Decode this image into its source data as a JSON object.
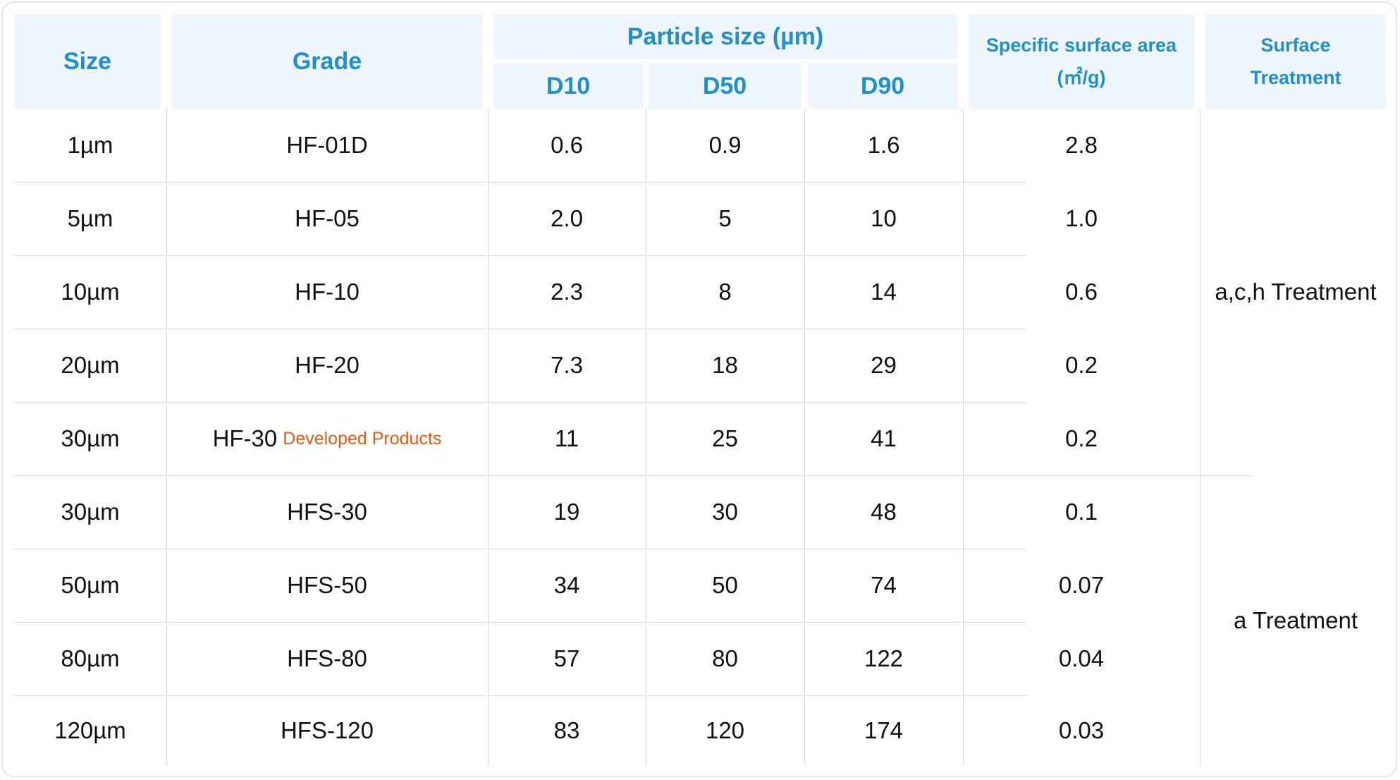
{
  "headers": {
    "size": "Size",
    "grade": "Grade",
    "particle_size": "Particle size (µm)",
    "d10": "D10",
    "d50": "D50",
    "d90": "D90",
    "ssa_line1": "Specific surface area",
    "ssa_line2": "(㎡/g)",
    "surface_line1": "Surface",
    "surface_line2": "Treatment"
  },
  "rows": [
    {
      "size": "1µm",
      "grade": "HF-01D",
      "note": "",
      "d10": "0.6",
      "d50": "0.9",
      "d90": "1.6",
      "ssa": "2.8"
    },
    {
      "size": "5µm",
      "grade": "HF-05",
      "note": "",
      "d10": "2.0",
      "d50": "5",
      "d90": "10",
      "ssa": "1.0"
    },
    {
      "size": "10µm",
      "grade": "HF-10",
      "note": "",
      "d10": "2.3",
      "d50": "8",
      "d90": "14",
      "ssa": "0.6"
    },
    {
      "size": "20µm",
      "grade": "HF-20",
      "note": "",
      "d10": "7.3",
      "d50": "18",
      "d90": "29",
      "ssa": "0.2"
    },
    {
      "size": "30µm",
      "grade": "HF-30",
      "note": "Developed Products",
      "d10": "11",
      "d50": "25",
      "d90": "41",
      "ssa": "0.2"
    },
    {
      "size": "30µm",
      "grade": "HFS-30",
      "note": "",
      "d10": "19",
      "d50": "30",
      "d90": "48",
      "ssa": "0.1"
    },
    {
      "size": "50µm",
      "grade": "HFS-50",
      "note": "",
      "d10": "34",
      "d50": "50",
      "d90": "74",
      "ssa": "0.07"
    },
    {
      "size": "80µm",
      "grade": "HFS-80",
      "note": "",
      "d10": "57",
      "d50": "80",
      "d90": "122",
      "ssa": "0.04"
    },
    {
      "size": "120µm",
      "grade": "HFS-120",
      "note": "",
      "d10": "83",
      "d50": "120",
      "d90": "174",
      "ssa": "0.03"
    }
  ],
  "treatments": [
    {
      "label": "a,c,h Treatment",
      "row_start": 0,
      "row_end": 4
    },
    {
      "label": "a Treatment",
      "row_start": 5,
      "row_end": 8
    }
  ],
  "colors": {
    "header_bg": "#eef6fb",
    "header_text": "#1f8fd0",
    "note_text": "#e35a12"
  }
}
